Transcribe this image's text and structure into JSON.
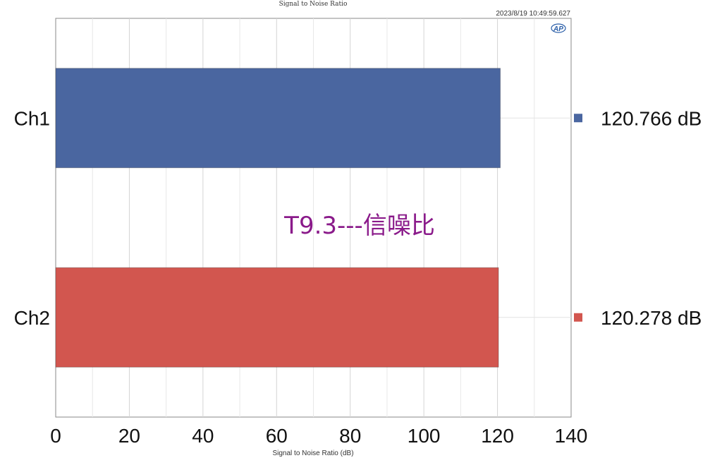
{
  "chart_data": {
    "type": "bar",
    "orientation": "horizontal",
    "title": "Signal to Noise Ratio",
    "timestamp": "2023/8/19 10:49:59.627",
    "logo": "AP",
    "annotation": "T9.3---信噪比",
    "xlabel": "Signal to Noise Ratio (dB)",
    "ylabel": "",
    "xlim": [
      0,
      140
    ],
    "xticks": [
      "0",
      "20",
      "40",
      "60",
      "80",
      "100",
      "120",
      "140"
    ],
    "categories": [
      "Ch1",
      "Ch2"
    ],
    "values": [
      120.766,
      120.278
    ],
    "legend": [
      {
        "label": "120.766 dB",
        "color": "#4a66a0"
      },
      {
        "label": "120.278 dB",
        "color": "#d2564f"
      }
    ],
    "colors": [
      "#4a66a0",
      "#d2564f"
    ],
    "grid": true,
    "legend_placement": "right"
  }
}
